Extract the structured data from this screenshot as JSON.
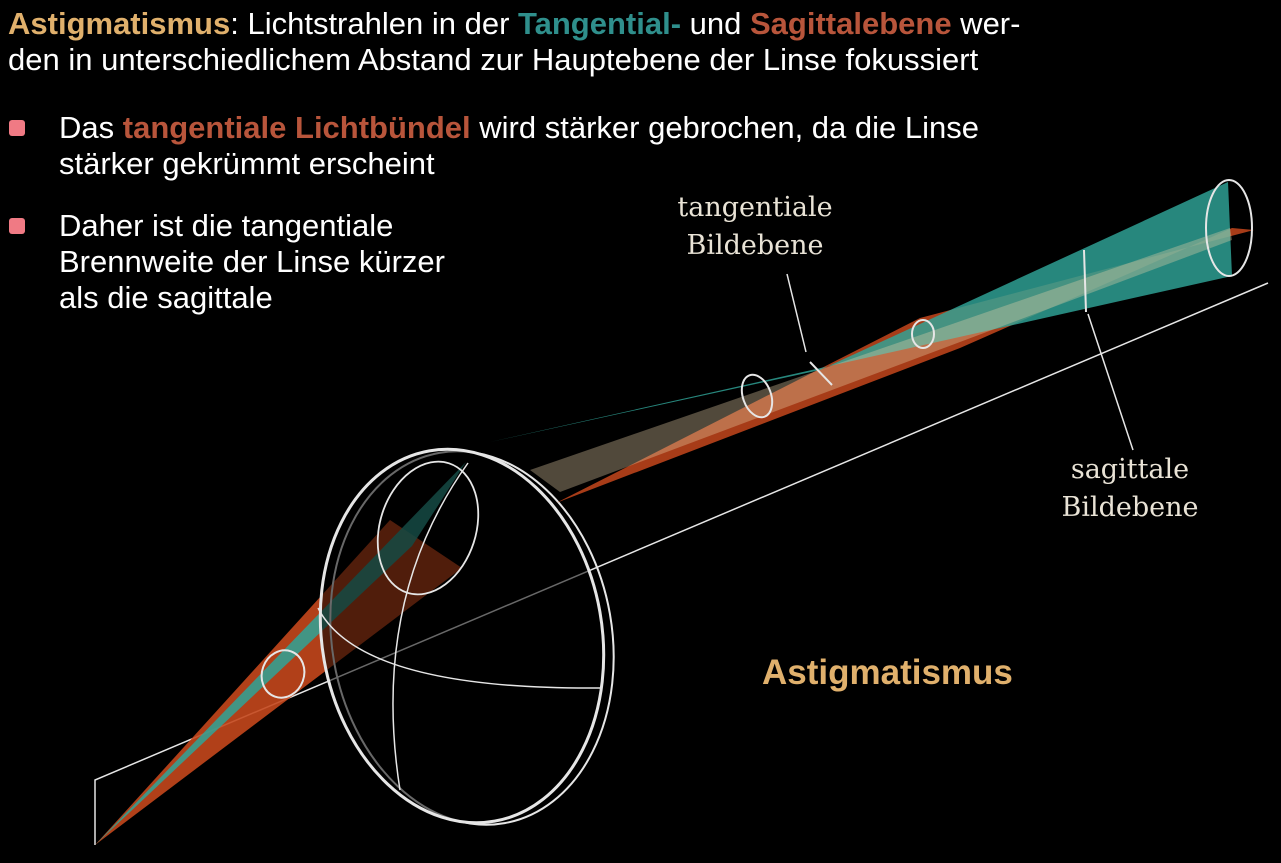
{
  "heading": {
    "term": "Astigmatismus",
    "text1": ": Lichtstrahlen in der ",
    "tangential": "Tangential-",
    "text2": " und ",
    "sagittal": "Sagittalebene",
    "text3": " wer-",
    "text4": "den in unterschiedlichem Abstand zur Hauptebene der Linse fokussiert"
  },
  "bullets": [
    {
      "pre": "Das ",
      "highlight": "tangentiale Lichtbündel",
      "line1_rest": " wird stärker gebrochen, da die Linse",
      "line2": "stärker gekrümmt erscheint"
    },
    {
      "line1": "Daher ist die tangentiale",
      "line2": "Brennweite der Linse kürzer",
      "line3": "als die sagittale"
    }
  ],
  "labels": {
    "tangential_plane": "tangentiale\nBildebene",
    "sagittal_plane": "sagittale\nBildebene",
    "figure_caption": "Astigmatismus"
  },
  "colors": {
    "background": "#000000",
    "tangential": "#2f8f8c",
    "sagittal": "#b8553b",
    "accent": "#e0b06c",
    "bullet_marker": "#f07a84"
  }
}
